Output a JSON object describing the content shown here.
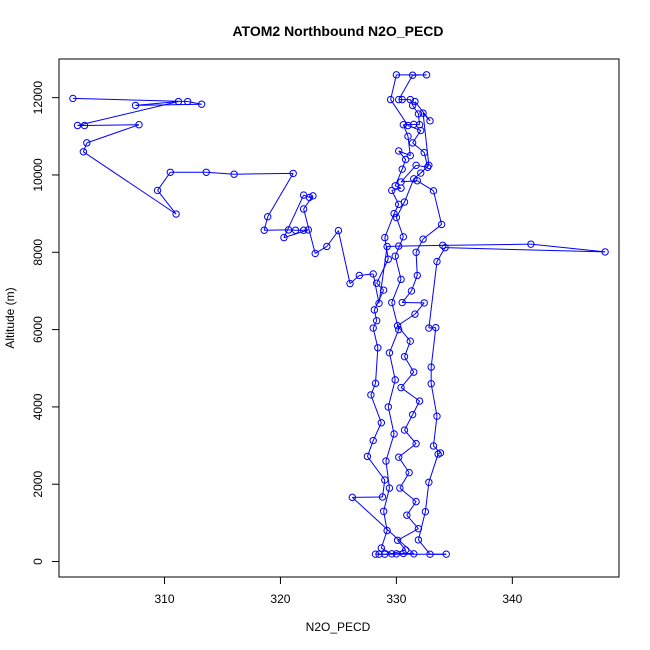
{
  "chart_data": {
    "type": "scatter",
    "title": "ATOM2 Northbound N2O_PECD",
    "xlabel": "N2O_PECD",
    "ylabel": "Altitude (m)",
    "xlim": [
      300.9,
      349.2
    ],
    "ylim": [
      -400,
      13000
    ],
    "x_ticks": [
      310,
      320,
      330,
      340
    ],
    "y_ticks": [
      0,
      2000,
      4000,
      6000,
      8000,
      10000,
      12000
    ],
    "grid": false,
    "legend": "none",
    "marker": "open-circle",
    "connected": true,
    "colors": {
      "series": "#0000ff",
      "axes": "#000000",
      "background": "#ffffff"
    },
    "series": [
      {
        "points": [
          [
            302.1,
            11980
          ],
          [
            312.0,
            11900
          ],
          [
            313.2,
            11830
          ],
          [
            307.5,
            11800
          ],
          [
            311.2,
            11900
          ],
          [
            302.5,
            11280
          ],
          [
            303.1,
            11280
          ],
          [
            307.8,
            11300
          ],
          [
            303.3,
            10830
          ],
          [
            303.0,
            10600
          ],
          [
            311.0,
            8990
          ],
          [
            309.4,
            9600
          ],
          [
            310.5,
            10070
          ],
          [
            313.6,
            10070
          ],
          [
            316.0,
            10020
          ],
          [
            321.1,
            10040
          ],
          [
            318.9,
            8920
          ],
          [
            318.6,
            8570
          ],
          [
            320.7,
            8580
          ],
          [
            321.3,
            8570
          ],
          [
            322.0,
            8570
          ],
          [
            322.4,
            8580
          ],
          [
            320.3,
            8380
          ],
          [
            322.0,
            9480
          ],
          [
            322.5,
            9420
          ],
          [
            322.8,
            9460
          ],
          [
            322.0,
            9120
          ],
          [
            323.0,
            7970
          ],
          [
            324.0,
            8150
          ],
          [
            325.0,
            8560
          ],
          [
            326.0,
            7190
          ],
          [
            326.8,
            7400
          ],
          [
            328.0,
            7440
          ],
          [
            328.5,
            6680
          ],
          [
            329.2,
            8150
          ],
          [
            330.2,
            8160
          ],
          [
            334.0,
            8180
          ],
          [
            341.6,
            8210
          ],
          [
            348.0,
            8010
          ],
          [
            334.2,
            8120
          ],
          [
            333.5,
            7760
          ],
          [
            332.8,
            6040
          ],
          [
            333.4,
            6050
          ],
          [
            333.0,
            5030
          ],
          [
            333.0,
            4600
          ],
          [
            333.5,
            3760
          ],
          [
            333.2,
            2990
          ],
          [
            333.8,
            2810
          ],
          [
            333.6,
            2780
          ],
          [
            332.8,
            2050
          ],
          [
            332.5,
            1290
          ],
          [
            331.9,
            560
          ],
          [
            332.9,
            190
          ],
          [
            334.3,
            190
          ],
          [
            328.5,
            190
          ],
          [
            328.2,
            190
          ],
          [
            329.0,
            190
          ],
          [
            330.0,
            200
          ],
          [
            330.6,
            210
          ],
          [
            331.5,
            200
          ],
          [
            326.2,
            1660
          ],
          [
            328.8,
            1670
          ],
          [
            329.0,
            2110
          ],
          [
            327.5,
            2720
          ],
          [
            328.0,
            3130
          ],
          [
            328.7,
            3590
          ],
          [
            327.8,
            4310
          ],
          [
            328.2,
            4610
          ],
          [
            328.4,
            5530
          ],
          [
            328.0,
            6040
          ],
          [
            328.3,
            6230
          ],
          [
            328.1,
            6510
          ],
          [
            328.9,
            7020
          ],
          [
            328.3,
            7200
          ],
          [
            329.3,
            7820
          ],
          [
            329.0,
            8380
          ],
          [
            329.8,
            9000
          ],
          [
            330.2,
            9240
          ],
          [
            329.6,
            9600
          ],
          [
            330.4,
            9660
          ],
          [
            329.9,
            9720
          ],
          [
            330.5,
            10150
          ],
          [
            330.8,
            10400
          ],
          [
            330.2,
            10620
          ],
          [
            331.2,
            10500
          ],
          [
            331.0,
            11000
          ],
          [
            330.6,
            11300
          ],
          [
            331.5,
            11310
          ],
          [
            332.0,
            11300
          ],
          [
            331.9,
            11580
          ],
          [
            331.4,
            11800
          ],
          [
            331.2,
            11950
          ],
          [
            330.5,
            11950
          ],
          [
            330.2,
            11950
          ],
          [
            331.4,
            12580
          ],
          [
            332.6,
            12590
          ],
          [
            330.0,
            12590
          ],
          [
            329.5,
            11950
          ],
          [
            331.0,
            11280
          ],
          [
            332.1,
            11150
          ],
          [
            331.4,
            10830
          ],
          [
            332.4,
            10580
          ],
          [
            332.7,
            10200
          ],
          [
            331.7,
            10250
          ],
          [
            330.4,
            9820
          ],
          [
            331.8,
            9850
          ],
          [
            333.2,
            9590
          ],
          [
            333.9,
            8720
          ],
          [
            332.3,
            8340
          ],
          [
            331.7,
            8000
          ],
          [
            331.8,
            7400
          ],
          [
            331.3,
            7000
          ],
          [
            330.5,
            6700
          ],
          [
            332.4,
            6690
          ],
          [
            331.6,
            6400
          ],
          [
            330.1,
            6100
          ],
          [
            331.2,
            5700
          ],
          [
            330.7,
            5300
          ],
          [
            331.5,
            4900
          ],
          [
            330.4,
            4500
          ],
          [
            332.0,
            4150
          ],
          [
            331.4,
            3800
          ],
          [
            330.7,
            3400
          ],
          [
            331.7,
            3050
          ],
          [
            330.2,
            2700
          ],
          [
            331.1,
            2300
          ],
          [
            330.3,
            1900
          ],
          [
            331.7,
            1550
          ],
          [
            330.9,
            1200
          ],
          [
            331.9,
            850
          ],
          [
            330.1,
            550
          ],
          [
            330.8,
            300
          ],
          [
            329.6,
            200
          ],
          [
            328.7,
            350
          ],
          [
            329.2,
            800
          ],
          [
            328.9,
            1300
          ],
          [
            329.4,
            1900
          ],
          [
            329.1,
            2600
          ],
          [
            329.8,
            3300
          ],
          [
            329.3,
            4000
          ],
          [
            329.9,
            4700
          ],
          [
            329.4,
            5400
          ],
          [
            330.2,
            6000
          ],
          [
            329.6,
            6700
          ],
          [
            330.4,
            7300
          ],
          [
            329.9,
            7900
          ],
          [
            330.6,
            8400
          ],
          [
            330.0,
            8900
          ],
          [
            330.7,
            9300
          ],
          [
            331.5,
            9900
          ],
          [
            332.1,
            10050
          ],
          [
            332.8,
            10250
          ],
          [
            332.3,
            11600
          ],
          [
            332.9,
            11400
          ],
          [
            331.6,
            11900
          ]
        ]
      }
    ]
  }
}
